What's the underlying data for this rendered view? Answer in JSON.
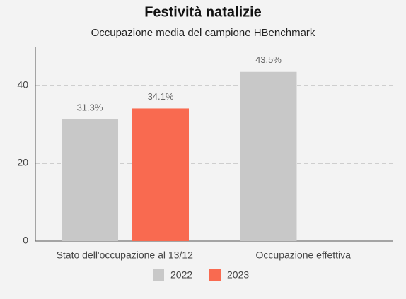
{
  "chart_data": {
    "type": "bar",
    "title": "Festività natalizie",
    "subtitle": "Occupazione media del campione HBenchmark",
    "categories": [
      "Stato dell'occupazione al 13/12",
      "Occupazione effettiva"
    ],
    "series": [
      {
        "name": "2022",
        "color": "#c8c8c8",
        "values": [
          31.3,
          43.5
        ],
        "value_labels": [
          "31.3%",
          "43.5%"
        ]
      },
      {
        "name": "2023",
        "color": "#f96a50",
        "values": [
          34.1,
          null
        ],
        "value_labels": [
          "34.1%",
          null
        ]
      }
    ],
    "ylim": [
      0,
      50
    ],
    "yticks": [
      0,
      20,
      40
    ],
    "grid": true,
    "legend": "bottom"
  }
}
